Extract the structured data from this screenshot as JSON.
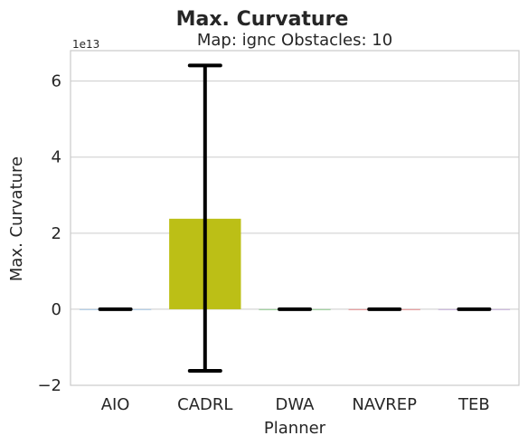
{
  "chart_data": {
    "type": "bar",
    "title": "Max. Curvature",
    "subtitle": "Map: ignc Obstacles: 10",
    "xlabel": "Planner",
    "ylabel": "Max. Curvature",
    "y_offset_label": "1e13",
    "y_scale": 10000000000000.0,
    "categories": [
      "AIO",
      "CADRL",
      "DWA",
      "NAVREP",
      "TEB"
    ],
    "values": [
      0.0,
      2.38,
      0.0,
      0.0,
      0.0
    ],
    "error_low": [
      0.0,
      -1.62,
      0.0,
      0.0,
      0.0
    ],
    "error_high": [
      0.0,
      6.41,
      0.0,
      0.0,
      0.0
    ],
    "ylim": [
      -2.0,
      6.8
    ],
    "yticks": [
      -2,
      0,
      2,
      4,
      6
    ],
    "ytick_labels": [
      "−2",
      "0",
      "2",
      "4",
      "6"
    ],
    "grid": true,
    "bar_colors": [
      "#5a9bd4",
      "#bcbf16",
      "#2ca02c",
      "#d62728",
      "#9467bd"
    ],
    "error_color": "#000000"
  }
}
